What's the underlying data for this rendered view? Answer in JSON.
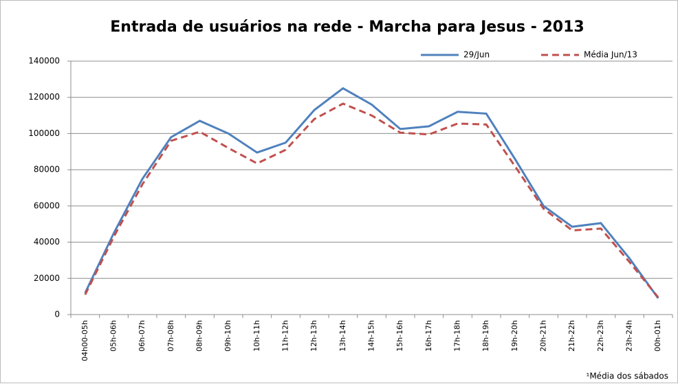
{
  "chart_data": {
    "type": "line",
    "title": "Entrada de usuários na rede - Marcha para Jesus - 2013",
    "footnote": "¹Média dos sábados",
    "categories": [
      "04h00-05h",
      "05h-06h",
      "06h-07h",
      "07h-08h",
      "08h-09h",
      "09h-10h",
      "10h-11h",
      "11h-12h",
      "12h-13h",
      "13h-14h",
      "14h-15h",
      "15h-16h",
      "16h-17h",
      "17h-18h",
      "18h-19h",
      "19h-20h",
      "20h-21h",
      "21h-22h",
      "22h-23h",
      "23h-24h",
      "00h-01h"
    ],
    "series": [
      {
        "name": "29/Jun",
        "color": "#4f81bd",
        "dash": false,
        "values": [
          12000,
          45000,
          75000,
          98000,
          107000,
          100000,
          89500,
          95000,
          113000,
          125000,
          116000,
          102500,
          104000,
          112000,
          111000,
          86000,
          60000,
          48500,
          50500,
          31000,
          9000
        ]
      },
      {
        "name": "Média Jun/13",
        "color": "#c0504d",
        "dash": true,
        "values": [
          11000,
          43000,
          72000,
          96000,
          101000,
          92000,
          83500,
          91000,
          108000,
          116500,
          110000,
          100500,
          99500,
          105500,
          105000,
          82000,
          58500,
          46500,
          47500,
          29000,
          9500
        ]
      }
    ],
    "ylim": [
      0,
      140000
    ],
    "yticks": [
      0,
      20000,
      40000,
      60000,
      80000,
      100000,
      120000,
      140000
    ],
    "grid": true,
    "legend": "top-right"
  }
}
